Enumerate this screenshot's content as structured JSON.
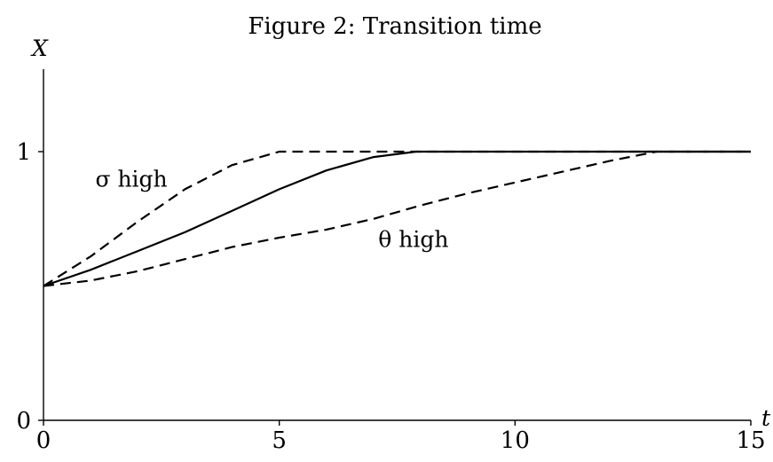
{
  "chart_data": {
    "type": "line",
    "title": "Figure 2: Transition time",
    "xlabel": "t",
    "ylabel": "X",
    "xlim": [
      0,
      15
    ],
    "ylim": [
      0,
      1.35
    ],
    "xticks": [
      {
        "value": 0,
        "label": "0"
      },
      {
        "value": 5,
        "label": "5"
      },
      {
        "value": 10,
        "label": "10"
      },
      {
        "value": 15,
        "label": "15"
      }
    ],
    "yticks": [
      {
        "value": 0,
        "label": "0"
      },
      {
        "value": 1,
        "label": "1"
      }
    ],
    "grid": false,
    "series": [
      {
        "style": "solid",
        "x": [
          0,
          1,
          2,
          3,
          4,
          5,
          6,
          7,
          7.9,
          10,
          12,
          15
        ],
        "y": [
          0.5,
          0.56,
          0.63,
          0.7,
          0.78,
          0.86,
          0.93,
          0.98,
          1.0,
          1.0,
          1.0,
          1.0
        ]
      },
      {
        "style": "dashed",
        "x": [
          0,
          1,
          2,
          3,
          4,
          5,
          6,
          7,
          7.9,
          10,
          12,
          15
        ],
        "y": [
          0.5,
          0.61,
          0.74,
          0.86,
          0.95,
          1.0,
          1.0,
          1.0,
          1.0,
          1.0,
          1.0,
          1.0
        ]
      },
      {
        "style": "dashed",
        "x": [
          0,
          1,
          2,
          3,
          4,
          5,
          6,
          7,
          8,
          9,
          10,
          11,
          12,
          13,
          15
        ],
        "y": [
          0.5,
          0.52,
          0.555,
          0.6,
          0.645,
          0.68,
          0.71,
          0.75,
          0.8,
          0.845,
          0.885,
          0.925,
          0.965,
          1.0,
          1.0
        ]
      }
    ],
    "annotations": [
      {
        "text": "σ high",
        "x": 1.1,
        "y": 0.87
      },
      {
        "text": "θ high",
        "x": 7.1,
        "y": 0.645
      }
    ]
  }
}
